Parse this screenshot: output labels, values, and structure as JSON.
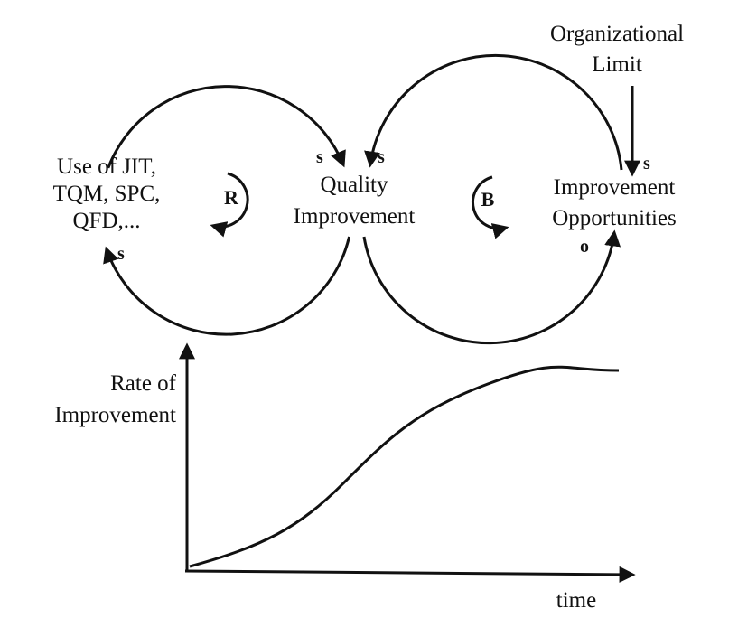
{
  "nodes": [
    {
      "lines": [
        "Organizational",
        "Limit"
      ]
    },
    {
      "lines": [
        "Use of JIT,",
        "TQM, SPC,",
        "QFD,..."
      ]
    },
    {
      "lines": [
        "Quality",
        "Improvement"
      ]
    },
    {
      "lines": [
        "Improvement",
        "Opportunities"
      ]
    }
  ],
  "polarities": [
    "s",
    "s",
    "s",
    "s",
    "o"
  ],
  "loops": [
    "R",
    "B"
  ],
  "graph": {
    "y_label": [
      "Rate of",
      "Improvement"
    ],
    "x_label": "time"
  }
}
